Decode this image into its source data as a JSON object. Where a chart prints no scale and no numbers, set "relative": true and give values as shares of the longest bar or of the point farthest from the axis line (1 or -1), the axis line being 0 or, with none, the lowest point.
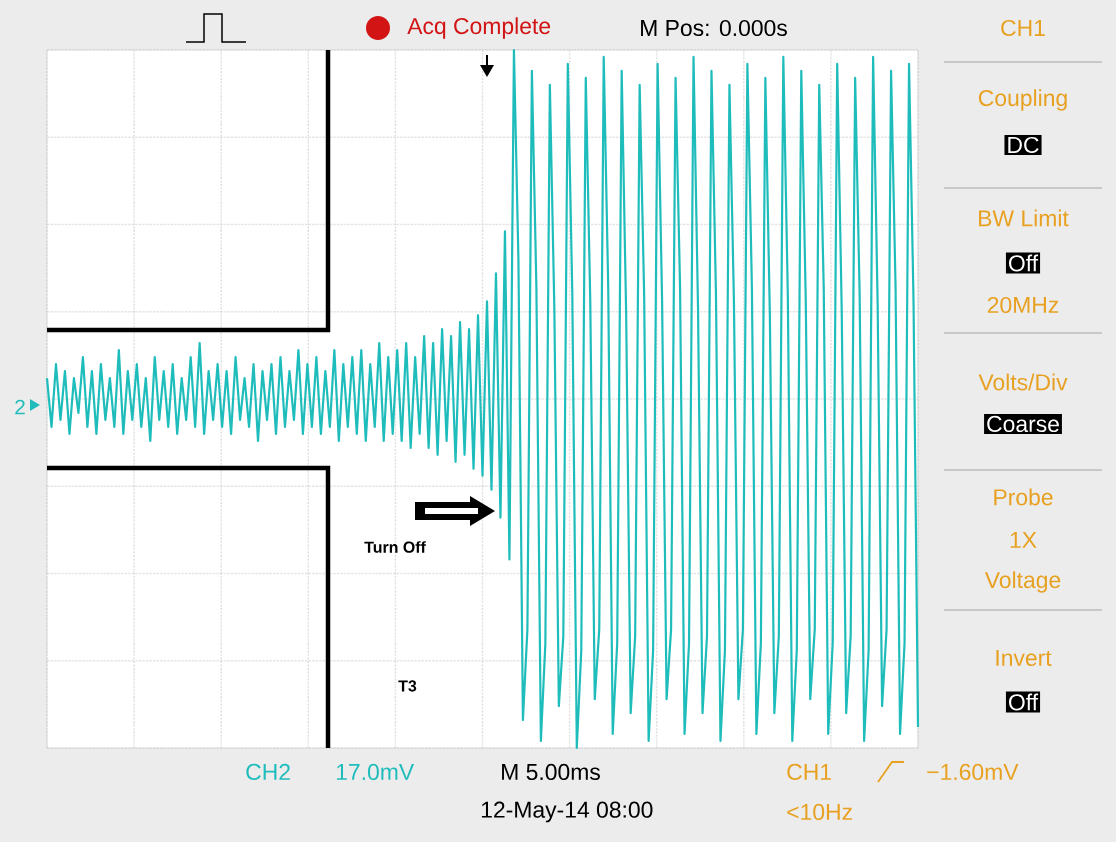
{
  "chart_data": {
    "type": "line",
    "relative": true,
    "grid": true,
    "color": "#1fbcbc",
    "categories": [
      null,
      null,
      null,
      null,
      null,
      null,
      null,
      null,
      null,
      null,
      null,
      null,
      null,
      null,
      null,
      null,
      null,
      null,
      null,
      null,
      null,
      null,
      null,
      null,
      null,
      null,
      null,
      null,
      null,
      null,
      null,
      null,
      null,
      null,
      null,
      null,
      null,
      null,
      null,
      null,
      null,
      null,
      null,
      null,
      null,
      null,
      null,
      null,
      null,
      null,
      null,
      null,
      null,
      null,
      null,
      null,
      null,
      null,
      null,
      null,
      null,
      null,
      null,
      null,
      null,
      null,
      null,
      null,
      null,
      null,
      null,
      null,
      null,
      null,
      null,
      null,
      null,
      null,
      null,
      null,
      null,
      null,
      null,
      null,
      null,
      null,
      null,
      null,
      null,
      null,
      null,
      null,
      null,
      null,
      null,
      null,
      null,
      null,
      null,
      null,
      null,
      null,
      null,
      null,
      null,
      null,
      null,
      null,
      null,
      null,
      null,
      null,
      null,
      null,
      null,
      null,
      null,
      null,
      null,
      null,
      null,
      null,
      null,
      null,
      null,
      null,
      null,
      null,
      null,
      null,
      null,
      null,
      null,
      null,
      null,
      null,
      null,
      null,
      null,
      null,
      null,
      null,
      null,
      null,
      null,
      null,
      null,
      null,
      null,
      null,
      null,
      null,
      null,
      null,
      null,
      null,
      null,
      null,
      null,
      null,
      null,
      null,
      null,
      null,
      null,
      null,
      null,
      null,
      null,
      null,
      null,
      null,
      null,
      null,
      null,
      null,
      null,
      null,
      null,
      null,
      null,
      null,
      null,
      null,
      null,
      null,
      null,
      null,
      null,
      null,
      null,
      null,
      null,
      null,
      null
    ],
    "values": [
      0.53,
      0.46,
      0.55,
      0.47,
      0.54,
      0.45,
      0.53,
      0.48,
      0.56,
      0.46,
      0.54,
      0.45,
      0.55,
      0.47,
      0.53,
      0.46,
      0.57,
      0.45,
      0.54,
      0.47,
      0.55,
      0.46,
      0.53,
      0.44,
      0.56,
      0.47,
      0.54,
      0.46,
      0.55,
      0.45,
      0.53,
      0.47,
      0.56,
      0.46,
      0.58,
      0.45,
      0.54,
      0.47,
      0.55,
      0.46,
      0.54,
      0.45,
      0.56,
      0.47,
      0.53,
      0.46,
      0.55,
      0.44,
      0.54,
      0.47,
      0.55,
      0.45,
      0.56,
      0.46,
      0.54,
      0.47,
      0.57,
      0.45,
      0.55,
      0.46,
      0.56,
      0.45,
      0.54,
      0.46,
      0.57,
      0.44,
      0.55,
      0.46,
      0.56,
      0.45,
      0.57,
      0.44,
      0.55,
      0.46,
      0.58,
      0.44,
      0.56,
      0.45,
      0.57,
      0.44,
      0.58,
      0.43,
      0.56,
      0.45,
      0.59,
      0.43,
      0.58,
      0.42,
      0.6,
      0.44,
      0.59,
      0.41,
      0.61,
      0.42,
      0.6,
      0.4,
      0.62,
      0.39,
      0.64,
      0.37,
      0.68,
      0.33,
      0.74,
      0.27,
      1,
      0.7,
      0.04,
      0.17,
      0.97,
      0.66,
      0.01,
      0.15,
      0.95,
      0.63,
      0.06,
      0.16,
      0.98,
      0.65,
      0,
      0.14,
      0.96,
      0.64,
      0.07,
      0.17,
      0.99,
      0.66,
      0.02,
      0.15,
      0.97,
      0.62,
      0.05,
      0.16,
      0.95,
      0.65,
      0.01,
      0.14,
      0.98,
      0.64,
      0.07,
      0.17,
      0.96,
      0.66,
      0.02,
      0.15,
      0.99,
      0.63,
      0.05,
      0.16,
      0.97,
      0.65,
      0.01,
      0.14,
      0.95,
      0.64,
      0.07,
      0.17,
      0.98,
      0.66,
      0.02,
      0.15,
      0.96,
      0.62,
      0.05,
      0.16,
      0.99,
      0.65,
      0.01,
      0.14,
      0.97,
      0.64,
      0.07,
      0.17,
      0.95,
      0.66,
      0.02,
      0.15,
      0.98,
      0.63,
      0.05,
      0.16,
      0.96,
      0.65,
      0.01,
      0.14,
      0.99,
      0.64,
      0.06,
      0.17,
      0.97,
      0.66,
      0.02,
      0.15,
      0.98,
      0.64,
      0.03
    ],
    "annotations": [
      "Acq Complete",
      "M Pos: 0.000s",
      "CH1",
      "Coupling",
      "DC",
      "BW Limit",
      "Off",
      "20MHz",
      "Volts/Div",
      "Coarse",
      "Probe",
      "1X",
      "Voltage",
      "Invert",
      "Off",
      "CH2",
      "17.0mV",
      "M 5.00ms",
      "12-May-14 08:00",
      "CH1",
      "−1.60mV",
      "<10Hz",
      "Turn Off",
      "T3",
      "2"
    ]
  }
}
